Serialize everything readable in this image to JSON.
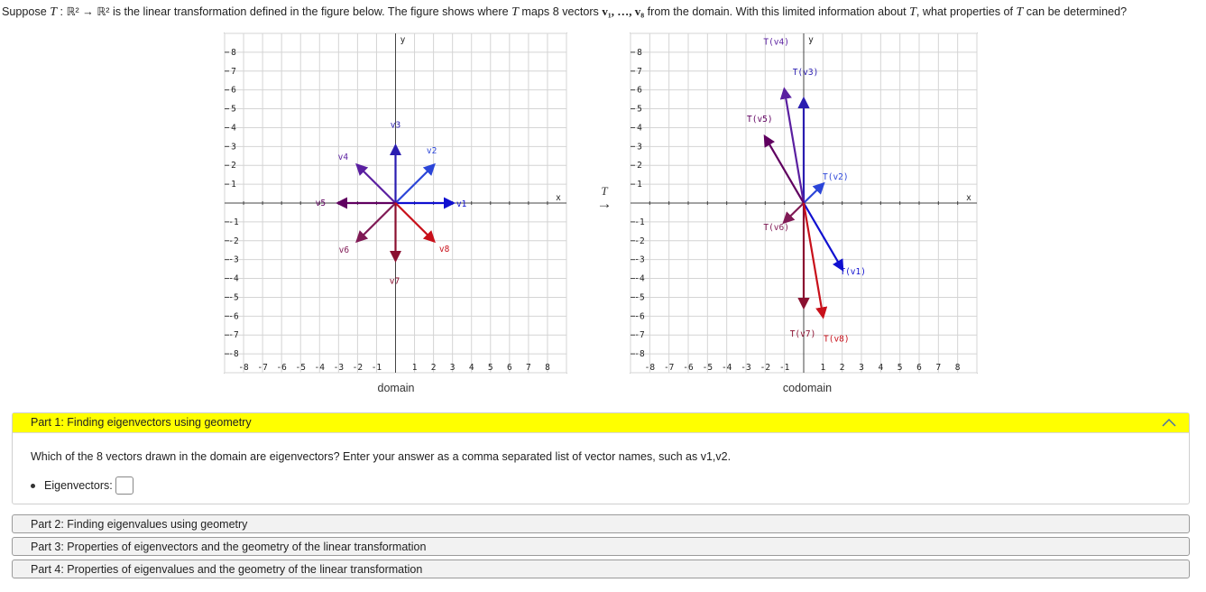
{
  "question": {
    "text_a": "Suppose ",
    "T": "T",
    "map": " : ℝ² → ℝ² is the linear transformation defined in the figure below. The figure shows where ",
    "text_b": " maps 8 vectors ",
    "vectors": "v₁, …, v₈",
    "text_c": " from the domain. With this limited information about ",
    "text_d": ", what properties of ",
    "text_e": " can be determined?"
  },
  "transform_arrow": {
    "label": "T",
    "arrow": "→"
  },
  "graphs": {
    "domain_caption": "domain",
    "codomain_caption": "codomain",
    "x_axis_label": "x",
    "y_axis_label": "y",
    "tick_labels": [
      -8,
      -7,
      -6,
      -5,
      -4,
      -3,
      -2,
      -1,
      1,
      2,
      3,
      4,
      5,
      6,
      7,
      8
    ]
  },
  "domain_vectors": [
    {
      "name": "v1",
      "x": 3,
      "y": 0,
      "color": "#1010d0"
    },
    {
      "name": "v2",
      "x": 2,
      "y": 2,
      "color": "#2b45d8"
    },
    {
      "name": "v3",
      "x": 0,
      "y": 3,
      "color": "#2a1db0"
    },
    {
      "name": "v4",
      "x": -2,
      "y": 2,
      "color": "#5a1fa0"
    },
    {
      "name": "v5",
      "x": -3,
      "y": 0,
      "color": "#600060"
    },
    {
      "name": "v6",
      "x": -2,
      "y": -2,
      "color": "#801a55"
    },
    {
      "name": "v7",
      "x": 0,
      "y": -3,
      "color": "#8a1030"
    },
    {
      "name": "v8",
      "x": 2,
      "y": -2,
      "color": "#c8101a"
    }
  ],
  "codomain_vectors": [
    {
      "name": "T(v1)",
      "x": 2,
      "y": -3.5,
      "color": "#1010d0"
    },
    {
      "name": "T(v2)",
      "x": 1,
      "y": 1,
      "color": "#2b45d8"
    },
    {
      "name": "T(v3)",
      "x": 0,
      "y": 5.5,
      "color": "#2a1db0"
    },
    {
      "name": "T(v4)",
      "x": -1,
      "y": 6,
      "color": "#5a1fa0"
    },
    {
      "name": "T(v5)",
      "x": -2,
      "y": 3.5,
      "color": "#600060"
    },
    {
      "name": "T(v6)",
      "x": -1,
      "y": -1,
      "color": "#801a55"
    },
    {
      "name": "T(v7)",
      "x": 0,
      "y": -5.5,
      "color": "#8a1030"
    },
    {
      "name": "T(v8)",
      "x": 1,
      "y": -6,
      "color": "#c8101a"
    }
  ],
  "part1": {
    "title": "Part 1: Finding eigenvectors using geometry",
    "prompt": "Which of the 8 vectors drawn in the domain are eigenvectors? Enter your answer as a comma separated list of vector names, such as v1,v2.",
    "eig_label": "Eigenvectors:",
    "eig_value": "",
    "header_color": "#ffff00"
  },
  "parts": [
    {
      "title": "Part 2: Finding eigenvalues using geometry"
    },
    {
      "title": "Part 3: Properties of eigenvectors and the geometry of the linear transformation"
    },
    {
      "title": "Part 4: Properties of eigenvalues and the geometry of the linear transformation"
    }
  ]
}
